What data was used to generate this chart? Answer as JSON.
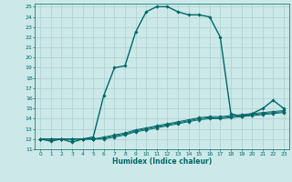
{
  "xlabel": "Humidex (Indice chaleur)",
  "ylabel": "",
  "bg_color": "#cce8e8",
  "grid_color": "#aad0d0",
  "line_color": "#006868",
  "xlim": [
    -0.5,
    23.5
  ],
  "ylim": [
    11,
    25.3
  ],
  "xticks": [
    0,
    1,
    2,
    3,
    4,
    5,
    6,
    7,
    8,
    9,
    10,
    11,
    12,
    13,
    14,
    15,
    16,
    17,
    18,
    19,
    20,
    21,
    22,
    23
  ],
  "yticks": [
    11,
    12,
    13,
    14,
    15,
    16,
    17,
    18,
    19,
    20,
    21,
    22,
    23,
    24,
    25
  ],
  "series": [
    {
      "x": [
        0,
        1,
        2,
        3,
        4,
        5,
        6,
        7,
        8,
        9,
        10,
        11,
        12,
        13,
        14,
        15,
        16,
        17,
        18,
        19,
        20,
        21,
        22,
        23
      ],
      "y": [
        12.0,
        11.8,
        12.0,
        11.7,
        12.0,
        12.2,
        16.3,
        19.0,
        19.2,
        22.5,
        24.5,
        25.0,
        25.0,
        24.5,
        24.2,
        24.2,
        24.0,
        22.0,
        14.5,
        14.2,
        14.5,
        15.0,
        15.8,
        15.0
      ],
      "marker": "D",
      "markersize": 1.8,
      "linewidth": 1.0
    },
    {
      "x": [
        0,
        1,
        2,
        3,
        4,
        5,
        6,
        7,
        8,
        9,
        10,
        11,
        12,
        13,
        14,
        15,
        16,
        17,
        18,
        19,
        20,
        21,
        22,
        23
      ],
      "y": [
        12.0,
        12.0,
        12.0,
        12.0,
        12.0,
        12.0,
        12.2,
        12.4,
        12.6,
        12.9,
        13.1,
        13.3,
        13.5,
        13.7,
        13.9,
        14.1,
        14.2,
        14.2,
        14.3,
        14.4,
        14.5,
        14.6,
        14.7,
        14.8
      ],
      "marker": "D",
      "markersize": 1.8,
      "linewidth": 0.7
    },
    {
      "x": [
        0,
        1,
        2,
        3,
        4,
        5,
        6,
        7,
        8,
        9,
        10,
        11,
        12,
        13,
        14,
        15,
        16,
        17,
        18,
        19,
        20,
        21,
        22,
        23
      ],
      "y": [
        12.0,
        12.0,
        12.0,
        12.0,
        12.0,
        12.0,
        12.1,
        12.3,
        12.5,
        12.8,
        13.0,
        13.2,
        13.4,
        13.6,
        13.8,
        14.0,
        14.1,
        14.1,
        14.2,
        14.3,
        14.4,
        14.5,
        14.6,
        14.7
      ],
      "marker": "D",
      "markersize": 1.8,
      "linewidth": 0.7
    },
    {
      "x": [
        0,
        1,
        2,
        3,
        4,
        5,
        6,
        7,
        8,
        9,
        10,
        11,
        12,
        13,
        14,
        15,
        16,
        17,
        18,
        19,
        20,
        21,
        22,
        23
      ],
      "y": [
        12.0,
        12.0,
        12.0,
        12.0,
        12.0,
        12.0,
        12.0,
        12.2,
        12.4,
        12.7,
        12.9,
        13.1,
        13.3,
        13.5,
        13.7,
        13.9,
        14.0,
        14.0,
        14.1,
        14.2,
        14.3,
        14.4,
        14.5,
        14.6
      ],
      "marker": "D",
      "markersize": 1.8,
      "linewidth": 0.7
    }
  ]
}
